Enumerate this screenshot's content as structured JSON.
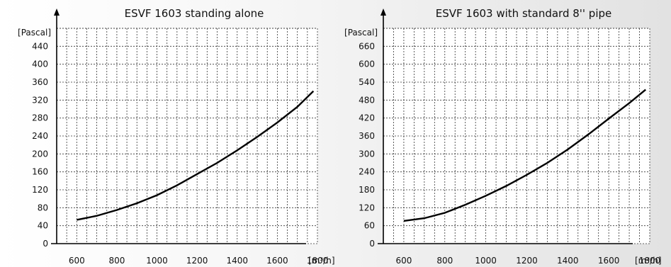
{
  "chart_data": [
    {
      "type": "line",
      "title": "ESVF 1603 standing alone",
      "ylabel": "[Pascal]",
      "xlabel": "[m³/h]",
      "x_ticks": [
        600,
        800,
        1000,
        1200,
        1400,
        1600,
        1800
      ],
      "y_ticks": [
        0,
        40,
        80,
        120,
        160,
        200,
        240,
        280,
        320,
        360,
        400,
        440
      ],
      "xlim": [
        500,
        1800
      ],
      "ylim": [
        0,
        480
      ],
      "grid": true,
      "series": [
        {
          "x": [
            600,
            700,
            800,
            900,
            1000,
            1100,
            1200,
            1300,
            1400,
            1500,
            1600,
            1700,
            1780
          ],
          "y": [
            53,
            62,
            75,
            90,
            108,
            130,
            155,
            180,
            208,
            238,
            270,
            305,
            340
          ]
        }
      ]
    },
    {
      "type": "line",
      "title": "ESVF 1603 with standard 8'' pipe",
      "ylabel": "[Pascal]",
      "xlabel": "[m³/h]",
      "x_ticks": [
        600,
        800,
        1000,
        1200,
        1400,
        1600,
        1800
      ],
      "y_ticks": [
        0,
        60,
        120,
        180,
        240,
        300,
        360,
        420,
        480,
        540,
        600,
        660
      ],
      "xlim": [
        500,
        1800
      ],
      "ylim": [
        0,
        720
      ],
      "grid": true,
      "series": [
        {
          "x": [
            600,
            700,
            800,
            900,
            1000,
            1100,
            1200,
            1300,
            1400,
            1500,
            1600,
            1700,
            1780
          ],
          "y": [
            76,
            85,
            103,
            130,
            160,
            193,
            230,
            270,
            315,
            365,
            418,
            470,
            515
          ]
        }
      ]
    }
  ]
}
